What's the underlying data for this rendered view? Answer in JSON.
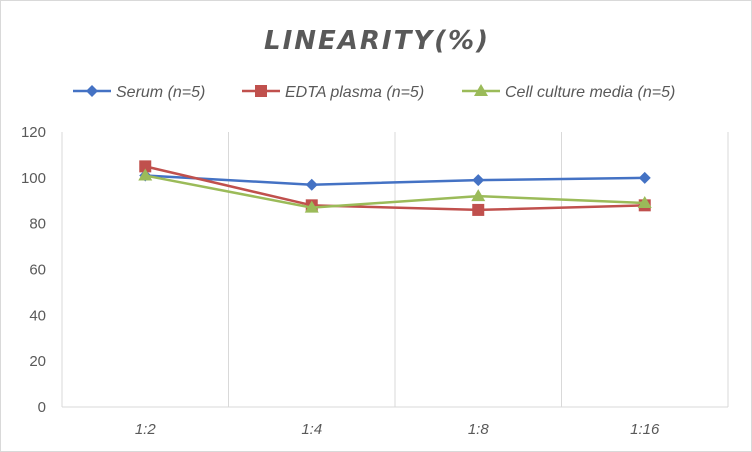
{
  "chart_data": {
    "type": "line",
    "title": "LINEARITY(%)",
    "xlabel": "",
    "ylabel": "",
    "categories": [
      "1:2",
      "1:4",
      "1:8",
      "1:16"
    ],
    "ylim": [
      0,
      120
    ],
    "yticks": [
      0,
      20,
      40,
      60,
      80,
      100,
      120
    ],
    "grid": "vertical",
    "legend_position": "top",
    "series": [
      {
        "name": "Serum (n=5)",
        "values": [
          101,
          97,
          99,
          100
        ],
        "color": "#4472C4",
        "marker": "diamond"
      },
      {
        "name": "EDTA plasma (n=5)",
        "values": [
          105,
          88,
          86,
          88
        ],
        "color": "#C0504D",
        "marker": "square"
      },
      {
        "name": "Cell culture media (n=5)",
        "values": [
          101,
          87,
          92,
          89
        ],
        "color": "#9BBB59",
        "marker": "triangle"
      }
    ]
  }
}
